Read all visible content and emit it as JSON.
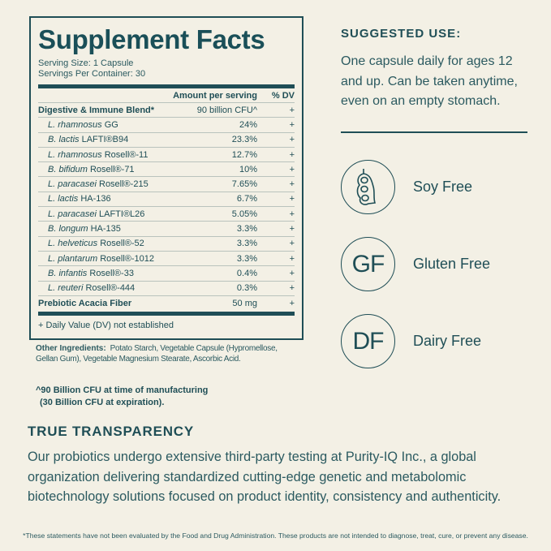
{
  "facts": {
    "title": "Supplement Facts",
    "serving_size": "Serving Size: 1 Capsule",
    "servings": "Servings Per Container: 30",
    "col_amount": "Amount per serving",
    "col_dv": "% DV",
    "blend": {
      "name": "Digestive & Immune Blend*",
      "amount": "90 billion CFU^",
      "dv": "+"
    },
    "strains": [
      {
        "species": "L. rhamnosus",
        "strain": " GG",
        "amount": "24%",
        "dv": "+"
      },
      {
        "species": "B. lactis",
        "strain": " LAFTI®B94",
        "amount": "23.3%",
        "dv": "+"
      },
      {
        "species": "L. rhamnosus",
        "strain": " Rosell®-11",
        "amount": "12.7%",
        "dv": "+"
      },
      {
        "species": "B. bifidum",
        "strain": " Rosell®-71",
        "amount": "10%",
        "dv": "+"
      },
      {
        "species": "L. paracasei",
        "strain": " Rosell®-215",
        "amount": "7.65%",
        "dv": "+"
      },
      {
        "species": "L. lactis",
        "strain": " HA-136",
        "amount": "6.7%",
        "dv": "+"
      },
      {
        "species": "L. paracasei",
        "strain": " LAFTI®L26",
        "amount": "5.05%",
        "dv": "+"
      },
      {
        "species": "B. longum",
        "strain": " HA-135",
        "amount": "3.3%",
        "dv": "+"
      },
      {
        "species": "L. helveticus",
        "strain": " Rosell®-52",
        "amount": "3.3%",
        "dv": "+"
      },
      {
        "species": "L. plantarum",
        "strain": " Rosell®-1012",
        "amount": "3.3%",
        "dv": "+"
      },
      {
        "species": "B. infantis",
        "strain": " Rosell®-33",
        "amount": "0.4%",
        "dv": "+"
      },
      {
        "species": "L. reuteri",
        "strain": " Rosell®-444",
        "amount": "0.3%",
        "dv": "+"
      }
    ],
    "fiber": {
      "name": "Prebiotic Acacia Fiber",
      "amount": "50 mg",
      "dv": "+"
    },
    "footnote": "+ Daily Value (DV) not established"
  },
  "other": {
    "label": "Other Ingredients:",
    "text": "Potato Starch, Vegetable Capsule (Hypromellose, Gellan Gum), Vegetable Magnesium Stearate, Ascorbic Acid."
  },
  "cfu_note": {
    "line1": "^90 Billion CFU at time of manufacturing",
    "line2": "(30 Billion CFU at expiration)."
  },
  "suggested": {
    "title": "SUGGESTED USE:",
    "body": "One capsule daily for ages 12 and up. Can be taken anytime, even on an empty stomach."
  },
  "features": [
    {
      "icon": "soybean-icon",
      "label": "Soy Free"
    },
    {
      "icon": "GF",
      "label": "Gluten Free"
    },
    {
      "icon": "DF",
      "label": "Dairy Free"
    }
  ],
  "transparency": {
    "title": "TRUE TRANSPARENCY",
    "body": "Our probiotics undergo extensive third-party testing at Purity-IQ Inc., a global organization delivering standardized cutting-edge genetic and metabolomic biotechnology solutions focused on product identity, consistency and authenticity."
  },
  "disclaimer": "*These statements have not been evaluated by the Food and Drug Administration. These products are not intended to diagnose, treat, cure, or prevent any disease.",
  "colors": {
    "background": "#f3f0e5",
    "accent": "#1f4e56"
  }
}
